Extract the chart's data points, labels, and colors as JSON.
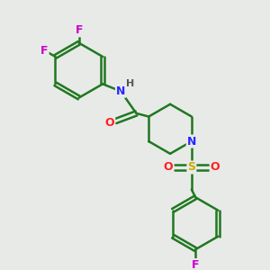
{
  "background_color": "#e8eae8",
  "atom_colors": {
    "C": "#207820",
    "N": "#2828ff",
    "O": "#ff2020",
    "S": "#ccaa00",
    "F": "#cc00cc",
    "H": "#555555"
  },
  "bond_color": "#207820",
  "line_width": 1.8,
  "dbo": 0.1,
  "figsize": [
    3.0,
    3.0
  ],
  "dpi": 100,
  "xlim": [
    0,
    10
  ],
  "ylim": [
    0,
    10
  ]
}
